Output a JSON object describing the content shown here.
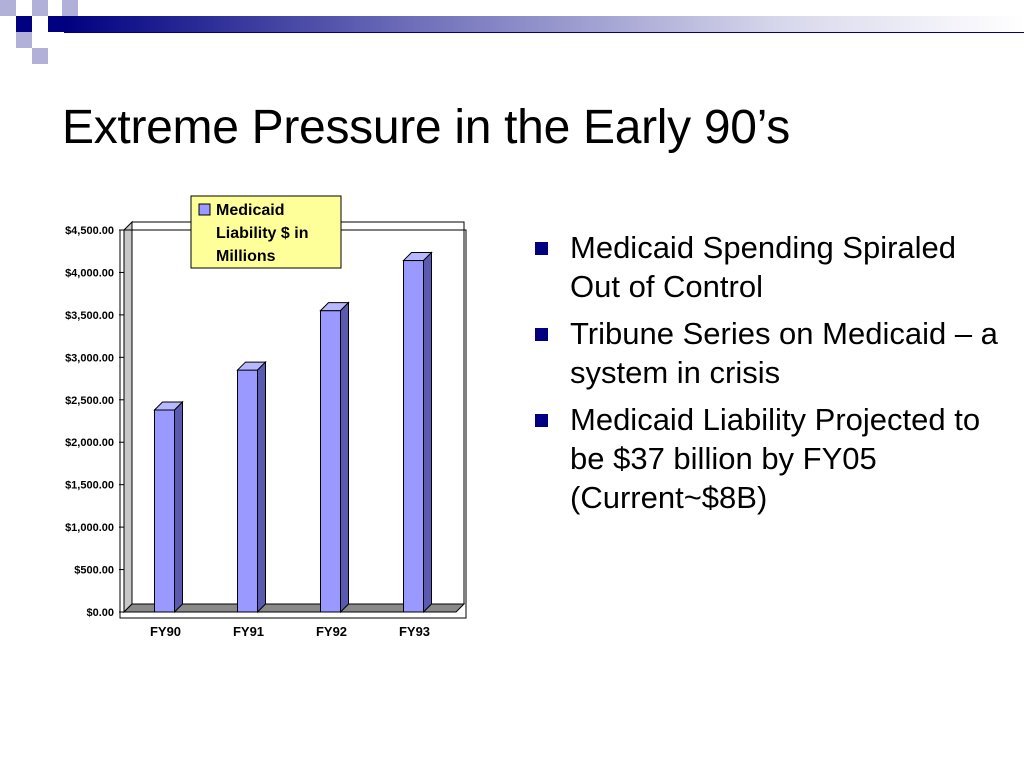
{
  "slide": {
    "title": "Extreme Pressure in the Early 90’s",
    "bullets": [
      "Medicaid Spending Spiraled Out of Control",
      "Tribune Series on Medicaid – a system in crisis",
      "Medicaid Liability Projected to be $37 billion by FY05 (Current~$8B)"
    ]
  },
  "colors": {
    "accent": "#000080",
    "bar": "#9999ff",
    "legend_bg": "#ffff99",
    "deco_light": "#b0b0d8"
  },
  "chart_data": {
    "type": "bar",
    "categories": [
      "FY90",
      "FY91",
      "FY92",
      "FY93"
    ],
    "series": [
      {
        "name": "Medicaid Liability $ in Millions",
        "values": [
          2380,
          2850,
          3550,
          4140
        ]
      }
    ],
    "legend_lines": [
      "Medicaid",
      "Liability $ in",
      "Millions"
    ],
    "yticks": [
      "$0.00",
      "$500.00",
      "$1,000.00",
      "$1,500.00",
      "$2,000.00",
      "$2,500.00",
      "$3,000.00",
      "$3,500.00",
      "$4,000.00",
      "$4,500.00"
    ],
    "ylim": [
      0,
      4500
    ],
    "legend_position": "top",
    "grid": false,
    "style": "3d-column"
  }
}
